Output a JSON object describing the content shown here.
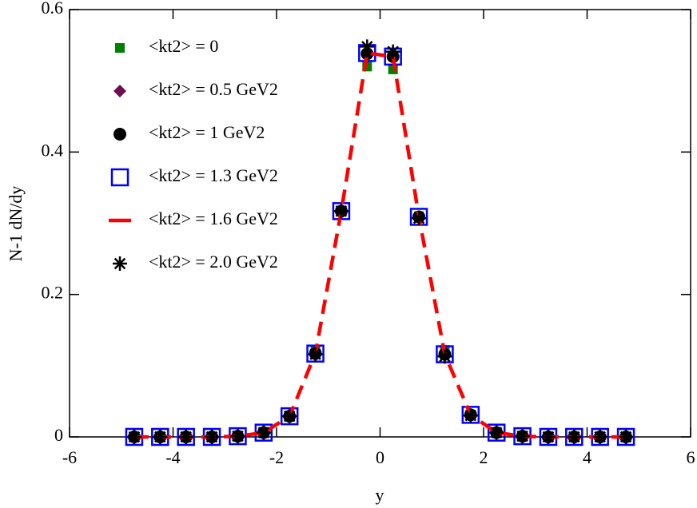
{
  "chart_data": {
    "type": "scatter",
    "x_label": "y",
    "y_label": "N-1 dN/dy",
    "x": [
      -4.75,
      -4.25,
      -3.75,
      -3.25,
      -2.75,
      -2.25,
      -1.75,
      -1.25,
      -0.75,
      -0.25,
      0.25,
      0.75,
      1.25,
      1.75,
      2.25,
      2.75,
      3.25,
      3.75,
      4.25,
      4.75
    ],
    "xlim": [
      -6,
      6
    ],
    "xticks": [
      -6,
      -4,
      -2,
      0,
      2,
      4,
      6
    ],
    "ylim": [
      0,
      0.6
    ],
    "yticks": [
      0,
      0.2,
      0.4,
      0.6
    ],
    "series": [
      {
        "name": "<kt2> = 0",
        "color": "#008000",
        "marker": "square-filled",
        "values": [
          0,
          0,
          0,
          0,
          0.001,
          0.007,
          0.03,
          0.121,
          0.318,
          0.52,
          0.516,
          0.31,
          0.122,
          0.031,
          0.006,
          0.001,
          0,
          0,
          0,
          0
        ]
      },
      {
        "name": "<kt2> = 0.5 GeV2",
        "color": "#6b0f4f",
        "marker": "diamond",
        "values": [
          0,
          0,
          0,
          0,
          0.001,
          0.006,
          0.029,
          0.117,
          0.317,
          0.538,
          0.534,
          0.309,
          0.116,
          0.031,
          0.006,
          0.001,
          0,
          0,
          0,
          0
        ]
      },
      {
        "name": "<kt2> = 1 GeV2",
        "color": "#000000",
        "marker": "circle",
        "values": [
          0,
          0,
          0,
          0,
          0.001,
          0.006,
          0.029,
          0.117,
          0.317,
          0.538,
          0.534,
          0.309,
          0.116,
          0.031,
          0.006,
          0.001,
          0,
          0,
          0,
          0
        ]
      },
      {
        "name": "<kt2> = 1.3 GeV2",
        "color": "#0000ff",
        "marker": "square-open",
        "values": [
          0,
          0,
          0,
          0,
          0.001,
          0.006,
          0.029,
          0.117,
          0.317,
          0.539,
          0.534,
          0.309,
          0.116,
          0.031,
          0.006,
          0.001,
          0,
          0,
          0,
          0
        ]
      },
      {
        "name": "<kt2> = 1.6 GeV2",
        "color": "#ff0000",
        "marker": "dashed-line",
        "values": [
          0,
          0,
          0,
          0,
          0.001,
          0.006,
          0.029,
          0.117,
          0.317,
          0.539,
          0.534,
          0.309,
          0.116,
          0.031,
          0.006,
          0.001,
          0,
          0,
          0,
          0
        ]
      },
      {
        "name": "<kt2> = 2.0 GeV2",
        "color": "#000000",
        "marker": "asterisk",
        "values": [
          0,
          0,
          0,
          0,
          0.001,
          0.006,
          0.029,
          0.116,
          0.317,
          0.548,
          0.541,
          0.307,
          0.113,
          0.03,
          0.006,
          0.001,
          0,
          0,
          0,
          0
        ]
      }
    ]
  }
}
